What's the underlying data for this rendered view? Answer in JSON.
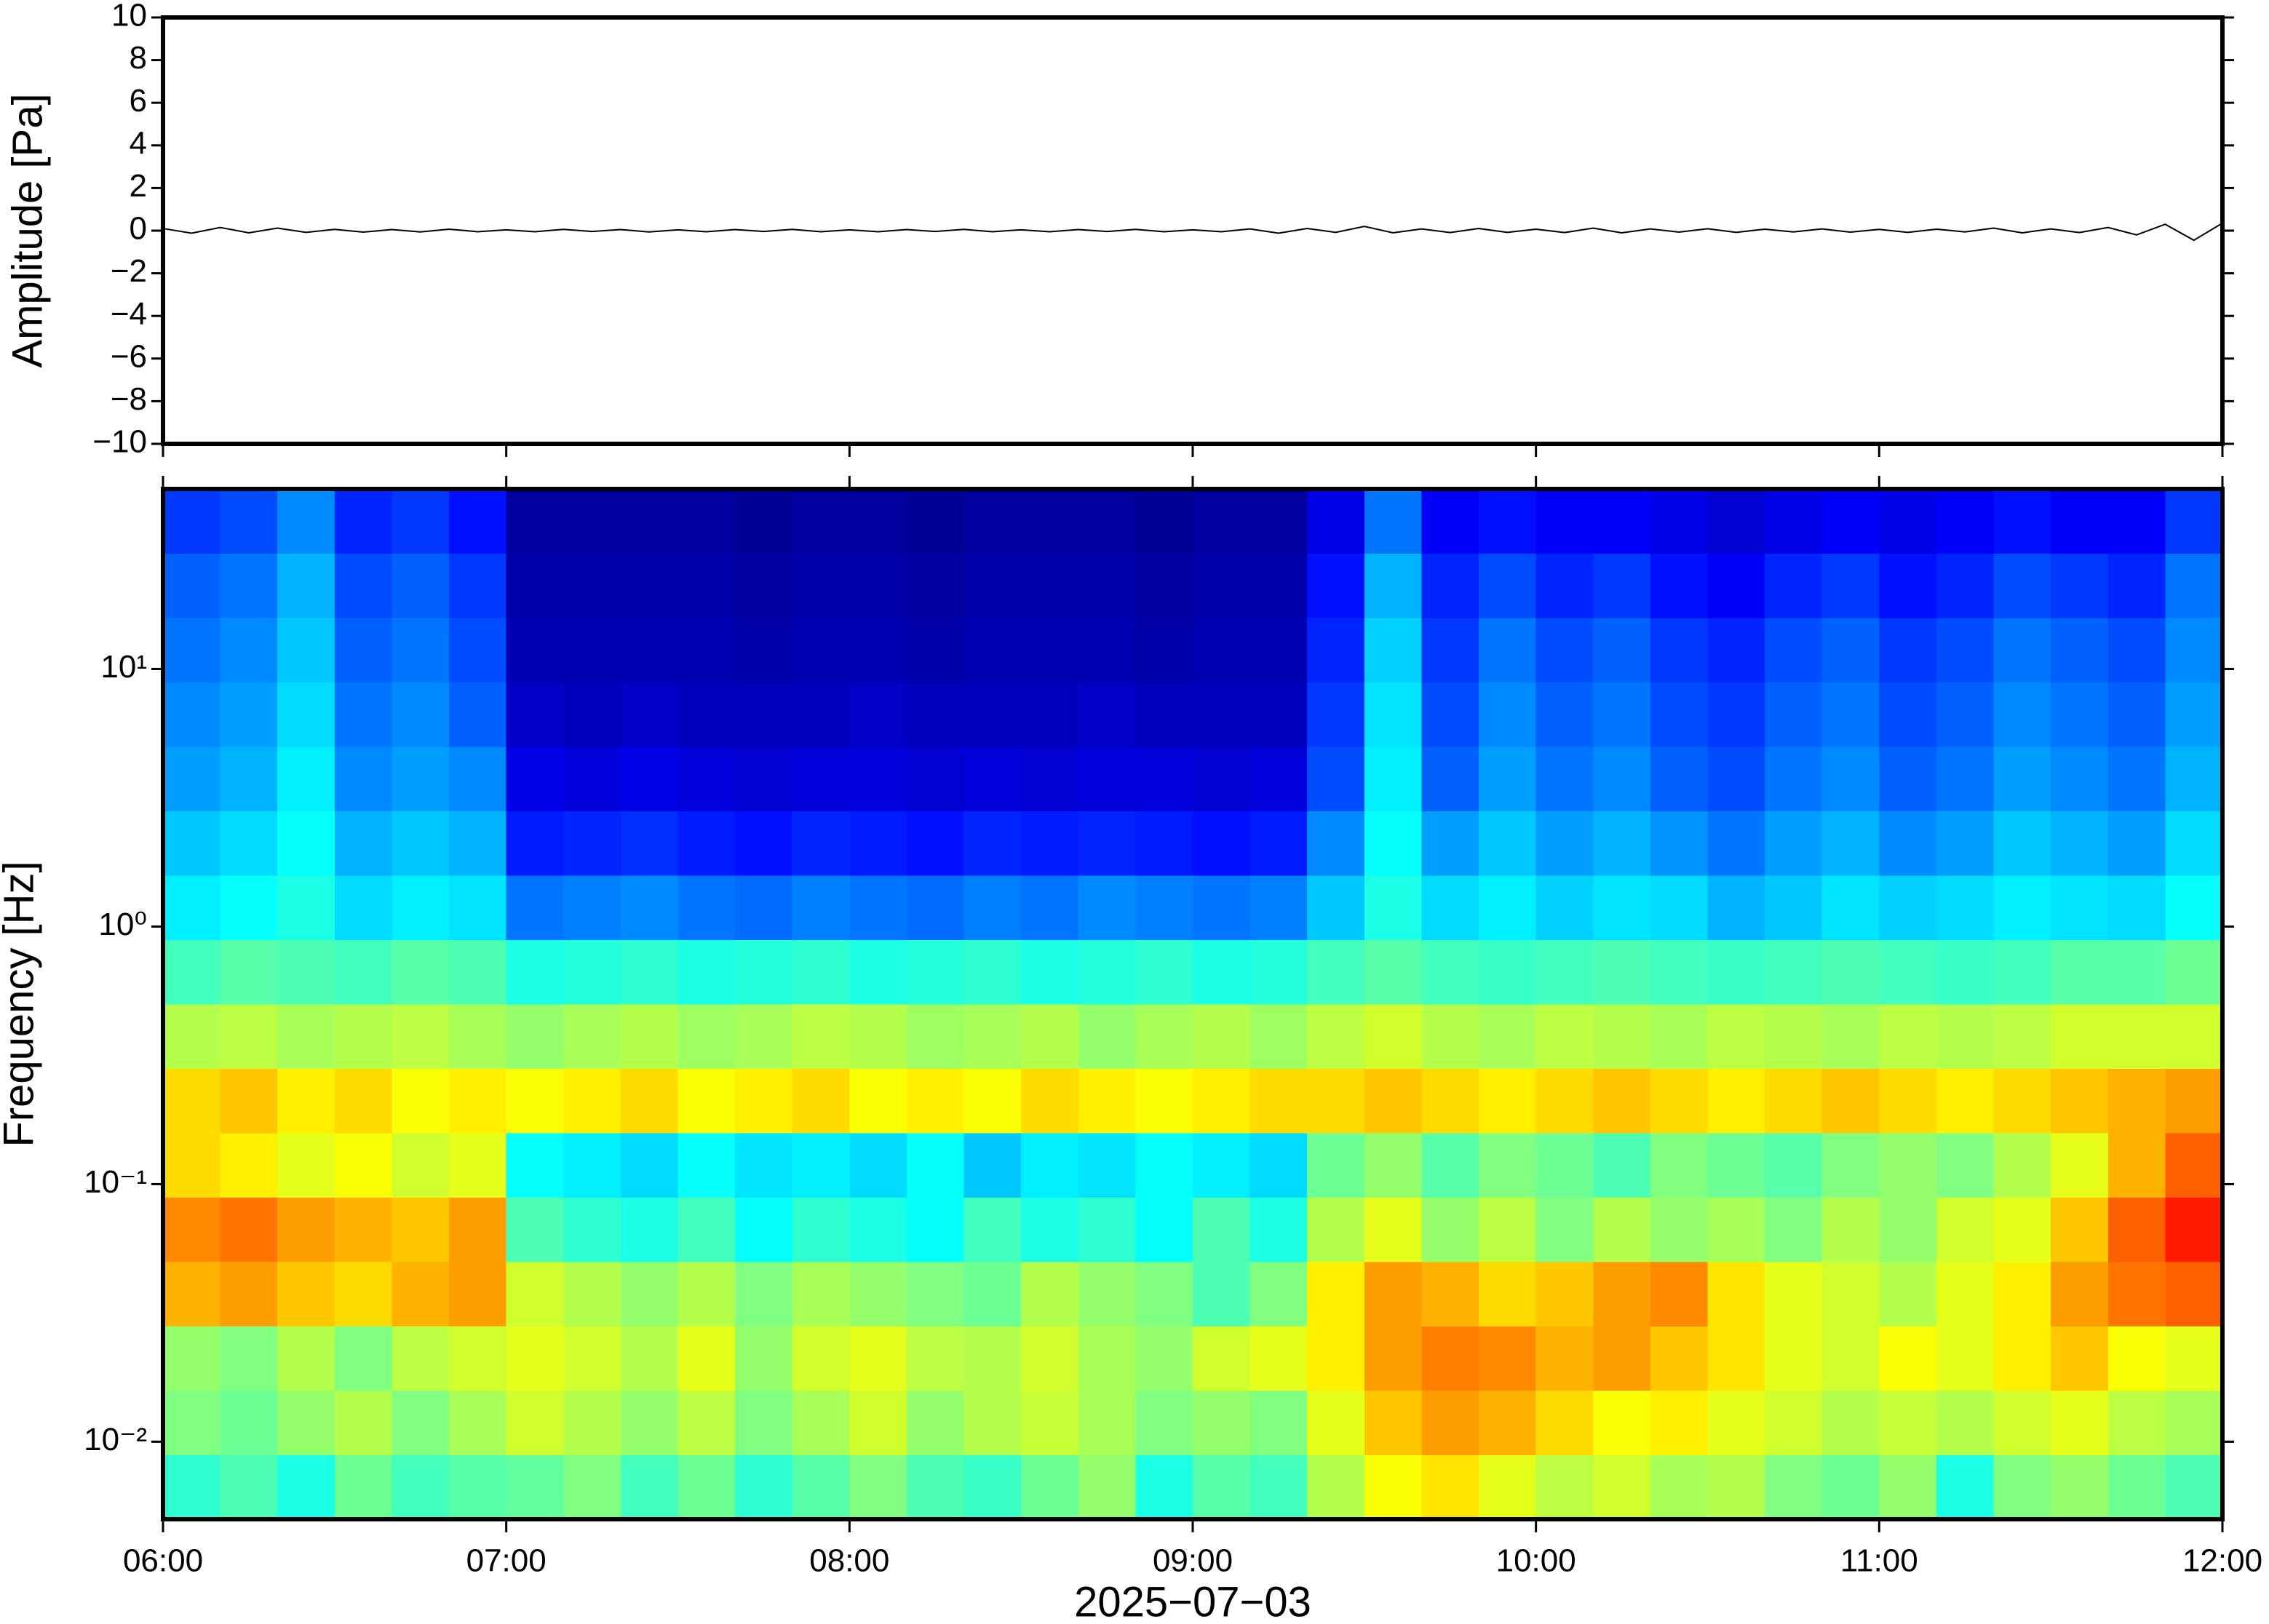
{
  "chart_data": [
    {
      "type": "line",
      "ylabel": "Amplitude [Pa]",
      "color": "#000000",
      "xlim": [
        "06:00",
        "12:00"
      ],
      "xticks": [
        "06:00",
        "07:00",
        "08:00",
        "09:00",
        "10:00",
        "11:00",
        "12:00"
      ],
      "ylim": [
        -10,
        10
      ],
      "yticks": [
        {
          "value": -10,
          "label": "−10"
        },
        {
          "value": -8,
          "label": "−8"
        },
        {
          "value": -6,
          "label": "−6"
        },
        {
          "value": -4,
          "label": "−4"
        },
        {
          "value": -2,
          "label": "−2"
        },
        0,
        2,
        4,
        6,
        8,
        10
      ],
      "x": [
        "06:00",
        "06:05",
        "06:10",
        "06:15",
        "06:20",
        "06:25",
        "06:30",
        "06:35",
        "06:40",
        "06:45",
        "06:50",
        "06:55",
        "07:00",
        "07:05",
        "07:10",
        "07:15",
        "07:20",
        "07:25",
        "07:30",
        "07:35",
        "07:40",
        "07:45",
        "07:50",
        "07:55",
        "08:00",
        "08:05",
        "08:10",
        "08:15",
        "08:20",
        "08:25",
        "08:30",
        "08:35",
        "08:40",
        "08:45",
        "08:50",
        "08:55",
        "09:00",
        "09:05",
        "09:10",
        "09:15",
        "09:20",
        "09:25",
        "09:30",
        "09:35",
        "09:40",
        "09:45",
        "09:50",
        "09:55",
        "10:00",
        "10:05",
        "10:10",
        "10:15",
        "10:20",
        "10:25",
        "10:30",
        "10:35",
        "10:40",
        "10:45",
        "10:50",
        "10:55",
        "11:00",
        "11:05",
        "11:10",
        "11:15",
        "11:20",
        "11:25",
        "11:30",
        "11:35",
        "11:40",
        "11:45",
        "11:50",
        "11:55",
        "12:00"
      ],
      "values": [
        0.1,
        -0.12,
        0.15,
        -0.1,
        0.12,
        -0.08,
        0.06,
        -0.07,
        0.05,
        -0.06,
        0.07,
        -0.05,
        0.04,
        -0.05,
        0.06,
        -0.04,
        0.05,
        -0.06,
        0.04,
        -0.05,
        0.05,
        -0.04,
        0.06,
        -0.05,
        0.04,
        -0.05,
        0.05,
        -0.04,
        0.06,
        -0.05,
        0.04,
        -0.05,
        0.05,
        -0.04,
        0.06,
        -0.05,
        0.04,
        -0.05,
        0.08,
        -0.12,
        0.1,
        -0.08,
        0.2,
        -0.1,
        0.08,
        -0.09,
        0.1,
        -0.08,
        0.07,
        -0.09,
        0.12,
        -0.1,
        0.08,
        -0.07,
        0.09,
        -0.08,
        0.07,
        -0.06,
        0.08,
        -0.07,
        0.06,
        -0.08,
        0.07,
        -0.06,
        0.12,
        -0.1,
        0.08,
        -0.09,
        0.15,
        -0.2,
        0.3,
        -0.45,
        0.35
      ]
    },
    {
      "type": "heatmap",
      "ylabel": "Frequency [Hz]",
      "xlabel": "2025−07−03",
      "colormap": "jet",
      "zlim": [
        0,
        1
      ],
      "log_y": true,
      "xlim": [
        "06:00",
        "12:00"
      ],
      "xticks": [
        "06:00",
        "07:00",
        "08:00",
        "09:00",
        "10:00",
        "11:00",
        "12:00"
      ],
      "ylim": [
        0.005,
        50
      ],
      "yticks": [
        {
          "value": 0.01,
          "label": "10⁻²"
        },
        {
          "value": 0.1,
          "label": "10⁻¹"
        },
        {
          "value": 1,
          "label": "10⁰"
        },
        {
          "value": 10,
          "label": "10¹"
        }
      ],
      "x": [
        "06:00",
        "06:10",
        "06:20",
        "06:30",
        "06:40",
        "06:50",
        "07:00",
        "07:10",
        "07:20",
        "07:30",
        "07:40",
        "07:50",
        "08:00",
        "08:10",
        "08:20",
        "08:30",
        "08:40",
        "08:50",
        "09:00",
        "09:10",
        "09:20",
        "09:30",
        "09:40",
        "09:50",
        "10:00",
        "10:10",
        "10:20",
        "10:30",
        "10:40",
        "10:50",
        "11:00",
        "11:10",
        "11:20",
        "11:30",
        "11:40",
        "11:50",
        "12:00"
      ],
      "bins": [
        0.005,
        0.0089,
        0.0158,
        0.0281,
        0.05,
        0.089,
        0.158,
        0.281,
        0.5,
        0.889,
        1.58,
        2.81,
        5,
        8.89,
        15.8,
        28.1,
        50
      ],
      "values": [
        [
          0.42,
          0.45,
          0.4,
          0.48,
          0.44,
          0.46,
          0.47,
          0.5,
          0.44,
          0.48,
          0.42,
          0.46,
          0.5,
          0.45,
          0.43,
          0.48,
          0.52,
          0.4,
          0.46,
          0.44,
          0.55,
          0.62,
          0.65,
          0.6,
          0.56,
          0.58,
          0.54,
          0.55,
          0.5,
          0.48,
          0.52,
          0.4,
          0.5,
          0.52,
          0.48,
          0.45
        ],
        [
          0.5,
          0.48,
          0.52,
          0.55,
          0.5,
          0.54,
          0.58,
          0.55,
          0.52,
          0.56,
          0.5,
          0.54,
          0.58,
          0.52,
          0.55,
          0.57,
          0.54,
          0.5,
          0.52,
          0.5,
          0.6,
          0.68,
          0.72,
          0.7,
          0.66,
          0.62,
          0.64,
          0.6,
          0.58,
          0.55,
          0.57,
          0.55,
          0.58,
          0.6,
          0.56,
          0.54
        ],
        [
          0.52,
          0.5,
          0.55,
          0.5,
          0.56,
          0.58,
          0.6,
          0.58,
          0.55,
          0.6,
          0.52,
          0.58,
          0.6,
          0.56,
          0.55,
          0.58,
          0.54,
          0.52,
          0.58,
          0.6,
          0.64,
          0.72,
          0.75,
          0.74,
          0.7,
          0.72,
          0.68,
          0.65,
          0.6,
          0.58,
          0.62,
          0.6,
          0.64,
          0.68,
          0.62,
          0.6
        ],
        [
          0.7,
          0.72,
          0.68,
          0.66,
          0.7,
          0.72,
          0.58,
          0.55,
          0.52,
          0.55,
          0.5,
          0.54,
          0.52,
          0.5,
          0.48,
          0.55,
          0.52,
          0.5,
          0.45,
          0.5,
          0.64,
          0.72,
          0.7,
          0.66,
          0.68,
          0.72,
          0.74,
          0.65,
          0.6,
          0.58,
          0.55,
          0.6,
          0.64,
          0.72,
          0.76,
          0.78
        ],
        [
          0.74,
          0.76,
          0.72,
          0.7,
          0.68,
          0.72,
          0.45,
          0.42,
          0.4,
          0.44,
          0.38,
          0.42,
          0.4,
          0.38,
          0.44,
          0.4,
          0.42,
          0.38,
          0.45,
          0.4,
          0.55,
          0.6,
          0.52,
          0.56,
          0.5,
          0.55,
          0.52,
          0.54,
          0.5,
          0.55,
          0.52,
          0.58,
          0.6,
          0.68,
          0.78,
          0.85
        ],
        [
          0.66,
          0.64,
          0.6,
          0.62,
          0.58,
          0.6,
          0.38,
          0.36,
          0.34,
          0.38,
          0.35,
          0.36,
          0.34,
          0.38,
          0.32,
          0.36,
          0.35,
          0.38,
          0.36,
          0.34,
          0.48,
          0.52,
          0.46,
          0.5,
          0.48,
          0.45,
          0.5,
          0.48,
          0.46,
          0.5,
          0.52,
          0.5,
          0.55,
          0.6,
          0.7,
          0.78
        ],
        [
          0.66,
          0.68,
          0.64,
          0.66,
          0.62,
          0.64,
          0.62,
          0.64,
          0.66,
          0.62,
          0.64,
          0.66,
          0.62,
          0.64,
          0.62,
          0.66,
          0.64,
          0.62,
          0.64,
          0.66,
          0.66,
          0.68,
          0.66,
          0.64,
          0.66,
          0.68,
          0.66,
          0.64,
          0.66,
          0.68,
          0.66,
          0.64,
          0.66,
          0.68,
          0.7,
          0.72
        ],
        [
          0.55,
          0.56,
          0.54,
          0.55,
          0.56,
          0.54,
          0.52,
          0.54,
          0.55,
          0.53,
          0.54,
          0.56,
          0.55,
          0.53,
          0.54,
          0.55,
          0.52,
          0.54,
          0.55,
          0.53,
          0.56,
          0.58,
          0.55,
          0.54,
          0.56,
          0.55,
          0.54,
          0.56,
          0.55,
          0.54,
          0.56,
          0.55,
          0.56,
          0.58,
          0.58,
          0.58
        ],
        [
          0.44,
          0.46,
          0.45,
          0.44,
          0.46,
          0.45,
          0.4,
          0.41,
          0.42,
          0.4,
          0.41,
          0.42,
          0.4,
          0.41,
          0.42,
          0.4,
          0.41,
          0.42,
          0.4,
          0.41,
          0.44,
          0.46,
          0.44,
          0.43,
          0.44,
          0.45,
          0.44,
          0.43,
          0.44,
          0.45,
          0.44,
          0.43,
          0.44,
          0.46,
          0.46,
          0.48
        ],
        [
          0.36,
          0.38,
          0.4,
          0.34,
          0.36,
          0.35,
          0.24,
          0.25,
          0.26,
          0.24,
          0.23,
          0.25,
          0.24,
          0.23,
          0.25,
          0.24,
          0.26,
          0.25,
          0.24,
          0.25,
          0.32,
          0.4,
          0.34,
          0.36,
          0.33,
          0.35,
          0.34,
          0.3,
          0.32,
          0.35,
          0.33,
          0.34,
          0.36,
          0.35,
          0.34,
          0.38
        ],
        [
          0.32,
          0.34,
          0.38,
          0.3,
          0.32,
          0.3,
          0.15,
          0.16,
          0.17,
          0.15,
          0.14,
          0.16,
          0.15,
          0.14,
          0.16,
          0.15,
          0.16,
          0.15,
          0.14,
          0.15,
          0.26,
          0.38,
          0.28,
          0.32,
          0.28,
          0.3,
          0.27,
          0.24,
          0.28,
          0.3,
          0.26,
          0.28,
          0.32,
          0.3,
          0.28,
          0.34
        ],
        [
          0.28,
          0.3,
          0.36,
          0.26,
          0.28,
          0.26,
          0.1,
          0.09,
          0.1,
          0.09,
          0.08,
          0.09,
          0.09,
          0.08,
          0.09,
          0.08,
          0.09,
          0.09,
          0.08,
          0.09,
          0.2,
          0.36,
          0.22,
          0.28,
          0.24,
          0.26,
          0.22,
          0.2,
          0.24,
          0.26,
          0.22,
          0.24,
          0.28,
          0.26,
          0.24,
          0.3
        ],
        [
          0.26,
          0.28,
          0.34,
          0.24,
          0.26,
          0.22,
          0.07,
          0.06,
          0.07,
          0.06,
          0.06,
          0.06,
          0.07,
          0.06,
          0.06,
          0.06,
          0.07,
          0.06,
          0.06,
          0.06,
          0.18,
          0.35,
          0.2,
          0.26,
          0.22,
          0.24,
          0.2,
          0.18,
          0.22,
          0.24,
          0.2,
          0.22,
          0.26,
          0.24,
          0.22,
          0.28
        ],
        [
          0.24,
          0.26,
          0.32,
          0.22,
          0.24,
          0.2,
          0.05,
          0.05,
          0.05,
          0.05,
          0.04,
          0.05,
          0.05,
          0.04,
          0.05,
          0.05,
          0.05,
          0.04,
          0.05,
          0.05,
          0.16,
          0.33,
          0.18,
          0.24,
          0.2,
          0.22,
          0.18,
          0.16,
          0.2,
          0.22,
          0.18,
          0.2,
          0.24,
          0.22,
          0.2,
          0.26
        ],
        [
          0.22,
          0.24,
          0.3,
          0.2,
          0.22,
          0.18,
          0.04,
          0.04,
          0.04,
          0.04,
          0.03,
          0.04,
          0.04,
          0.03,
          0.04,
          0.04,
          0.04,
          0.03,
          0.04,
          0.04,
          0.14,
          0.3,
          0.16,
          0.2,
          0.16,
          0.18,
          0.14,
          0.12,
          0.16,
          0.18,
          0.14,
          0.16,
          0.2,
          0.18,
          0.16,
          0.24
        ],
        [
          0.18,
          0.2,
          0.26,
          0.16,
          0.18,
          0.14,
          0.03,
          0.03,
          0.03,
          0.03,
          0.02,
          0.03,
          0.03,
          0.02,
          0.03,
          0.03,
          0.03,
          0.02,
          0.03,
          0.03,
          0.1,
          0.24,
          0.12,
          0.14,
          0.12,
          0.12,
          0.1,
          0.08,
          0.1,
          0.12,
          0.1,
          0.12,
          0.14,
          0.12,
          0.12,
          0.18
        ]
      ]
    }
  ]
}
